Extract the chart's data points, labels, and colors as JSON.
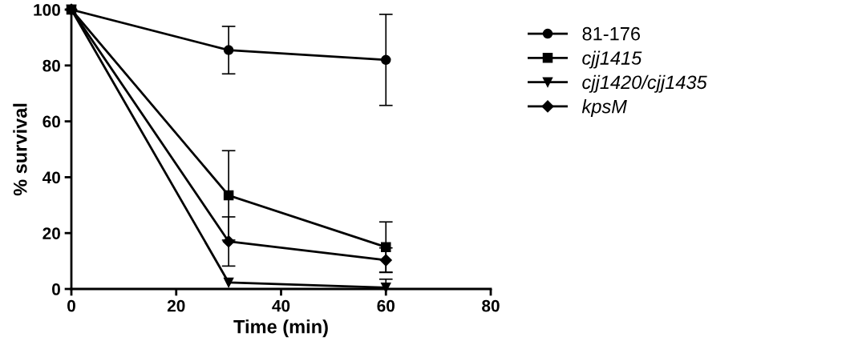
{
  "chart_data": {
    "type": "line",
    "xlabel": "Time (min)",
    "ylabel": "% survival",
    "x": [
      0,
      30,
      60
    ],
    "series": [
      {
        "name": "81-176",
        "color": "#000000",
        "marker": "circle",
        "values": [
          100,
          85.5,
          82
        ],
        "errors": [
          null,
          8.5,
          16.3
        ]
      },
      {
        "name": "cjj1415",
        "color": "#000000",
        "marker": "square",
        "values": [
          100,
          33.5,
          15
        ],
        "errors": [
          null,
          16,
          9
        ]
      },
      {
        "name": "cjj1420/cjj1435",
        "color": "#000000",
        "marker": "triangle",
        "values": [
          100,
          2.3,
          0.5
        ],
        "errors": [
          null,
          null,
          3
        ]
      },
      {
        "name": "kpsM",
        "color": "#000000",
        "marker": "diamond",
        "values": [
          100,
          17,
          10.3
        ],
        "errors": [
          null,
          8.8,
          4.4
        ]
      }
    ],
    "xlim": [
      0,
      80
    ],
    "xticks": [
      0,
      20,
      40,
      60,
      80
    ],
    "ylim": [
      0,
      100
    ],
    "yticks": [
      0,
      20,
      40,
      60,
      80,
      100
    ],
    "grid": false,
    "legend": "right",
    "line_style": "solid"
  }
}
